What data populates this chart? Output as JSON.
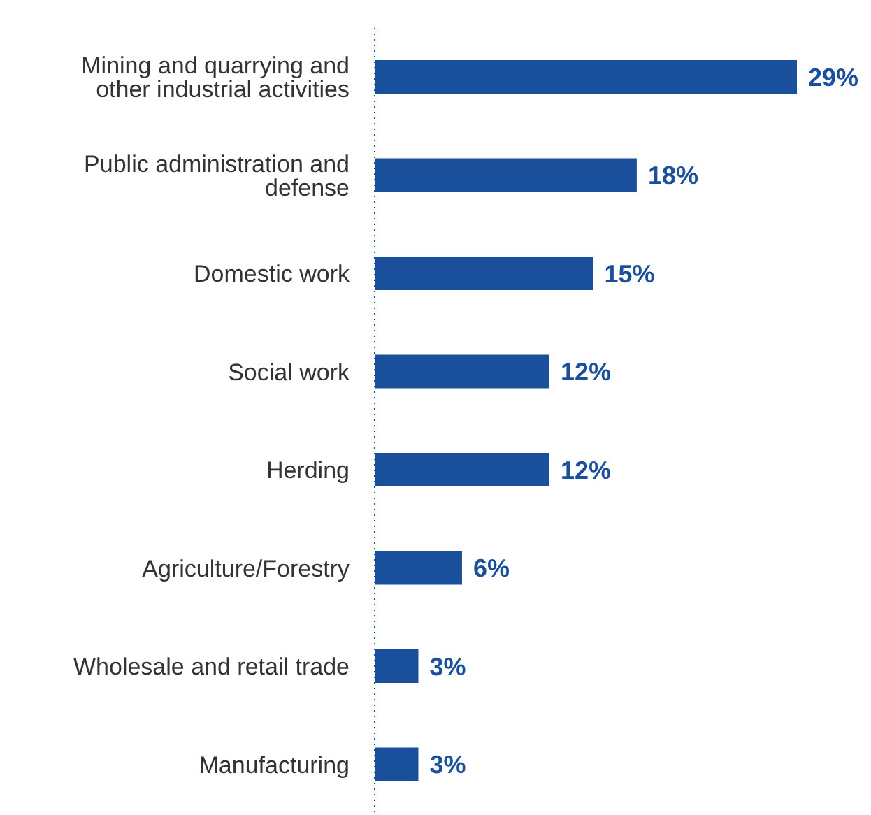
{
  "chart_data": {
    "type": "bar",
    "orientation": "horizontal",
    "categories": [
      "Mining and quarrying and other industrial activities",
      "Public administration and defense",
      "Domestic work",
      "Social work",
      "Herding",
      "Agriculture/Forestry",
      "Wholesale and retail trade",
      "Manufacturing"
    ],
    "values": [
      29,
      18,
      15,
      12,
      12,
      6,
      3,
      3
    ],
    "value_labels": [
      "29%",
      "18%",
      "15%",
      "12%",
      "12%",
      "6%",
      "3%",
      "3%"
    ],
    "color": "#1a4f9c",
    "legend": false,
    "grid": false
  }
}
